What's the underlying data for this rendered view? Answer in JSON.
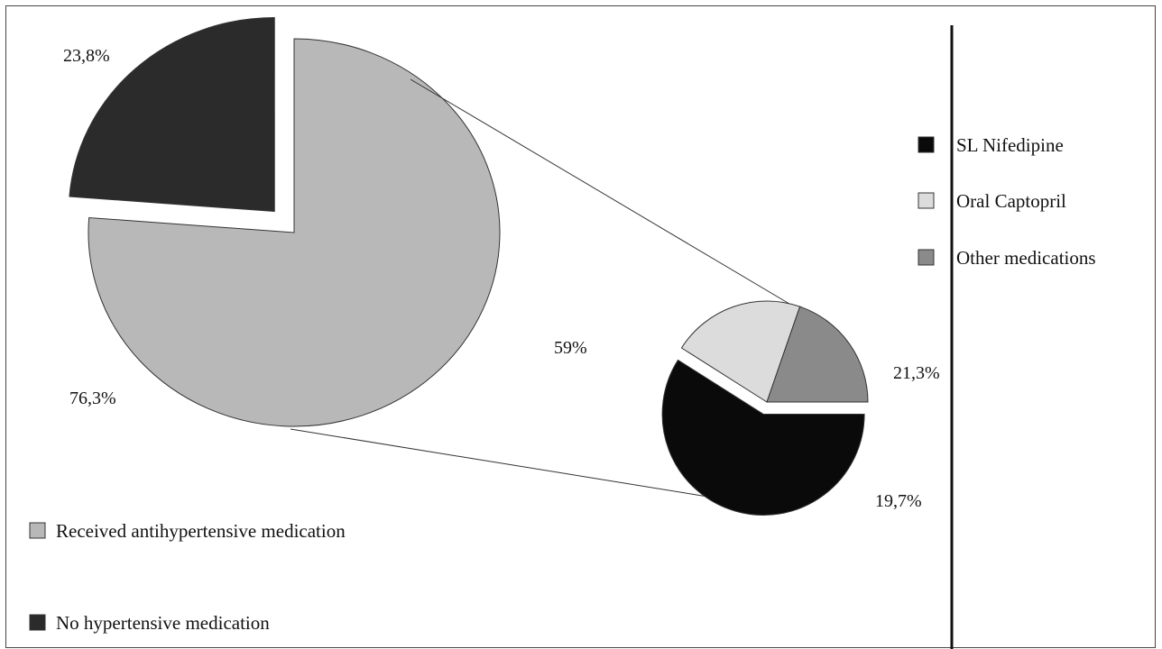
{
  "chart_data": [
    {
      "type": "pie",
      "slices": [
        {
          "label": "Received antihypertensive medication",
          "value": 76.3,
          "display": "76,3%",
          "color": "#b8b8b8"
        },
        {
          "label": "No hypertensive medication",
          "value": 23.8,
          "display": "23,8%",
          "color": "#2b2b2b"
        }
      ],
      "legend": {
        "placement": "bottom-left"
      }
    },
    {
      "type": "pie",
      "slices": [
        {
          "label": "SL Nifedipine",
          "value": 59,
          "display": "59%",
          "color": "#0a0a0a"
        },
        {
          "label": "Oral Captopril",
          "value": 21.3,
          "display": "21,3%",
          "color": "#dcdcdc"
        },
        {
          "label": "Other medications",
          "value": 19.7,
          "display": "19,7%",
          "color": "#8a8a8a"
        }
      ],
      "legend": {
        "placement": "right"
      }
    }
  ]
}
